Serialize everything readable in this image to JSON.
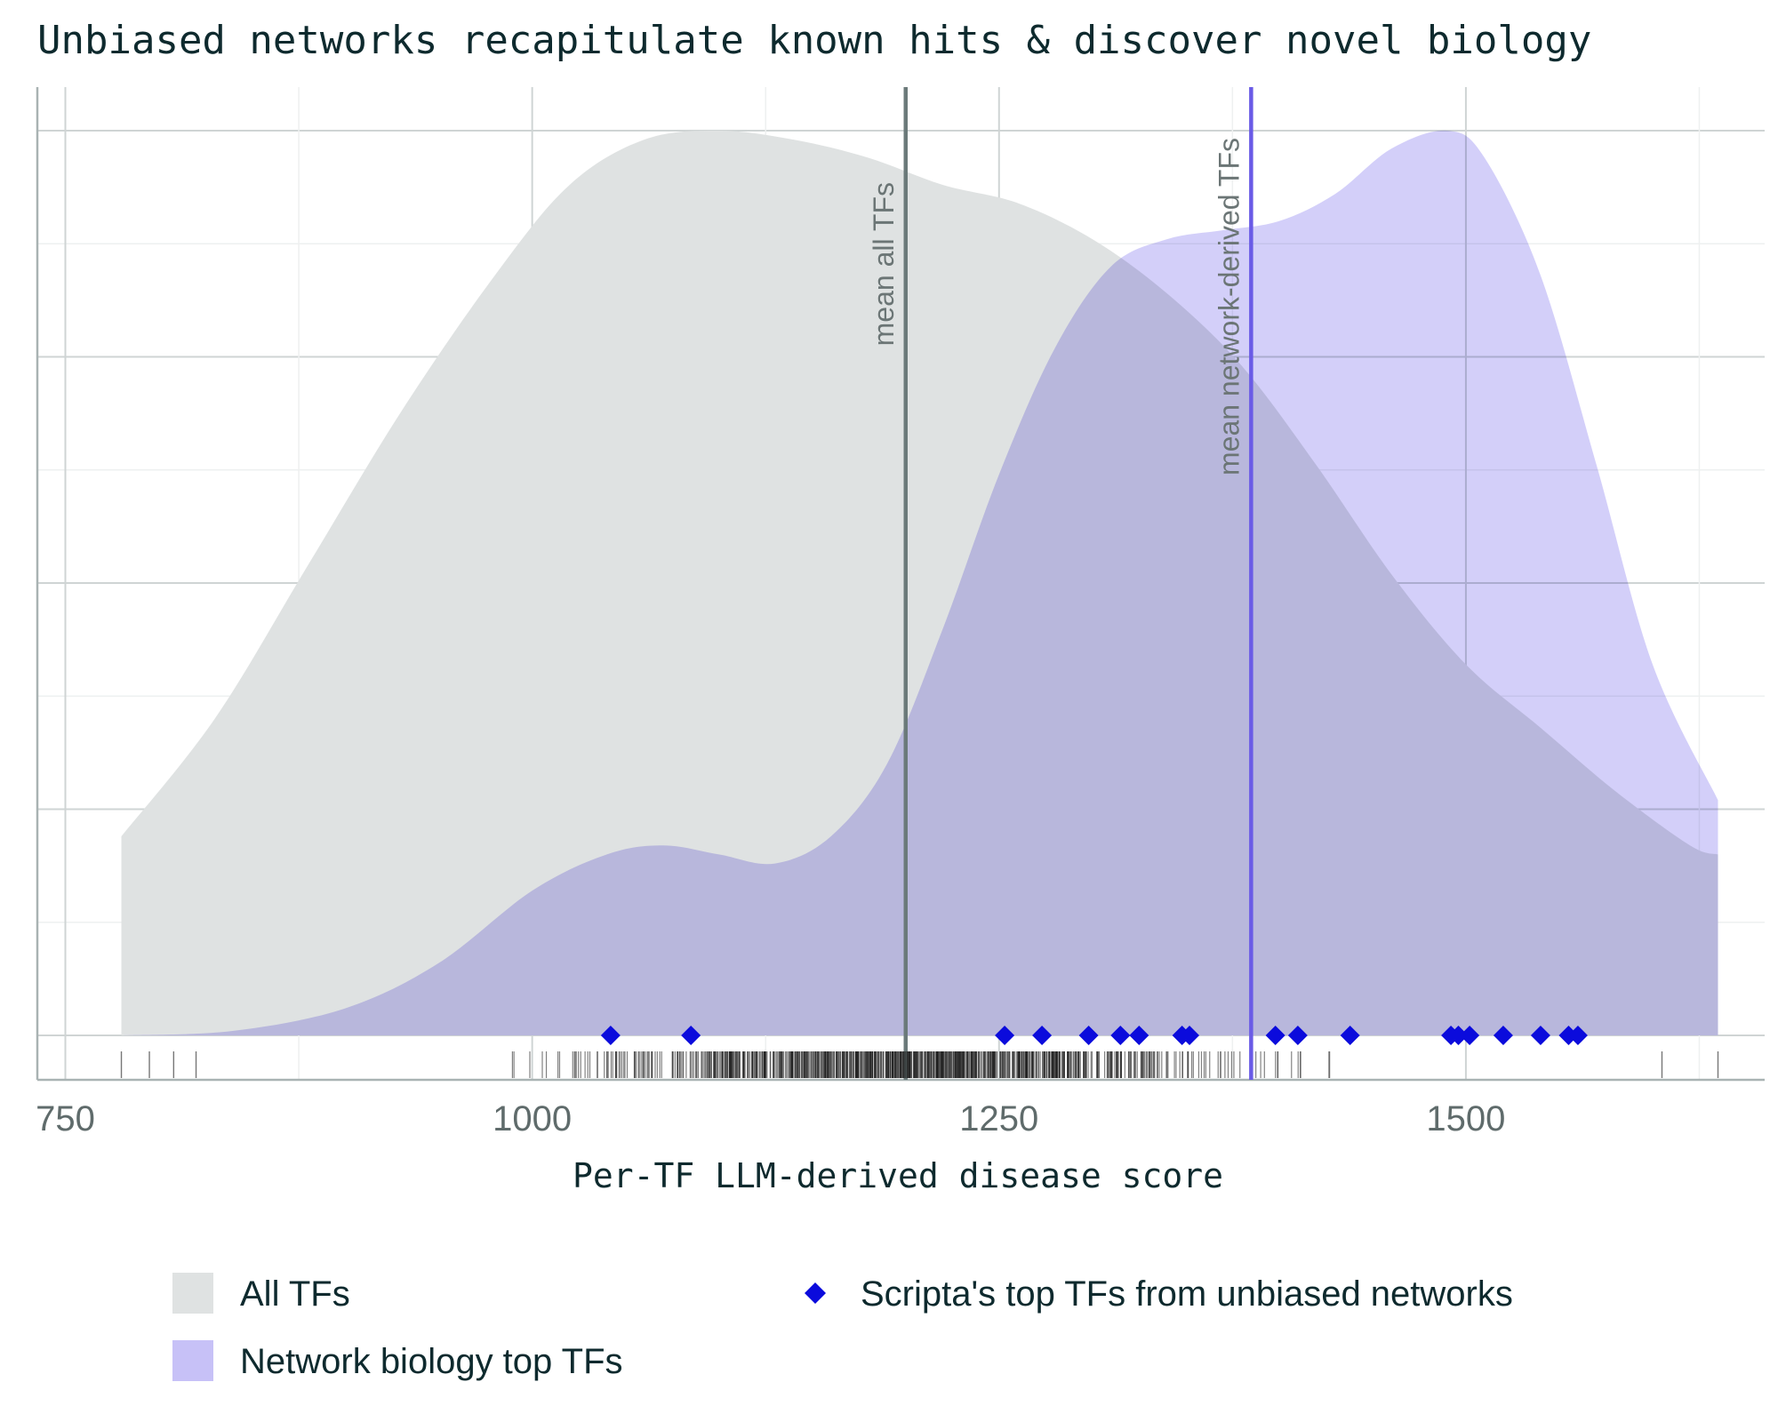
{
  "chart_data": {
    "type": "area",
    "title": "Unbiased networks recapitulate known hits & discover novel biology",
    "xlabel": "Per-TF LLM-derived disease score",
    "ylabel": "",
    "xlim": [
      735,
      1660
    ],
    "xticks": [
      750,
      1000,
      1250,
      1500
    ],
    "xtick_labels": [
      "750",
      "1000",
      "1250",
      "1500"
    ],
    "ylim": [
      0,
      1.05
    ],
    "grid": true,
    "legend_position": "bottom",
    "colors": {
      "all_tfs": "#dfe2e2",
      "network_tfs": "#c7c1f7",
      "scripta_marker": "#0b0bdc",
      "mean_all_line": "#6b7a7a",
      "mean_network_line": "#6a5be6",
      "rug": "#1c1c1c"
    },
    "series": [
      {
        "name": "All TFs",
        "style": "density",
        "x": [
          780,
          830,
          880,
          930,
          980,
          1020,
          1060,
          1100,
          1140,
          1180,
          1220,
          1260,
          1300,
          1340,
          1380,
          1420,
          1460,
          1500,
          1540,
          1580,
          1620,
          1635
        ],
        "y": [
          0.22,
          0.35,
          0.52,
          0.69,
          0.84,
          0.94,
          0.99,
          1.0,
          0.99,
          0.97,
          0.94,
          0.92,
          0.88,
          0.82,
          0.74,
          0.63,
          0.51,
          0.41,
          0.34,
          0.27,
          0.21,
          0.2
        ]
      },
      {
        "name": "Network biology top TFs",
        "style": "density",
        "x": [
          780,
          840,
          900,
          950,
          1000,
          1040,
          1070,
          1100,
          1130,
          1160,
          1190,
          1220,
          1250,
          1280,
          1310,
          1340,
          1370,
          1400,
          1430,
          1460,
          1490,
          1510,
          1540,
          1570,
          1600,
          1635
        ],
        "y": [
          0.0,
          0.005,
          0.03,
          0.08,
          0.16,
          0.2,
          0.21,
          0.2,
          0.19,
          0.22,
          0.3,
          0.45,
          0.62,
          0.76,
          0.85,
          0.88,
          0.89,
          0.9,
          0.93,
          0.98,
          1.0,
          0.97,
          0.84,
          0.63,
          0.41,
          0.26
        ]
      },
      {
        "name": "Scripta's top TFs from unbiased networks",
        "style": "markers",
        "x": [
          1042,
          1085,
          1253,
          1273,
          1298,
          1315,
          1325,
          1348,
          1352,
          1398,
          1410,
          1438,
          1492,
          1496,
          1502,
          1520,
          1540,
          1555,
          1560
        ]
      }
    ],
    "vertical_lines": [
      {
        "label": "mean all TFs",
        "x": 1200
      },
      {
        "label": "mean network-derived TFs",
        "x": 1385
      }
    ],
    "rug": {
      "x_min": 780,
      "x_max": 1635,
      "center": 1200,
      "spread": 155,
      "count": 900
    },
    "legend": [
      {
        "label": "All TFs",
        "kind": "patch",
        "color": "#dfe2e2"
      },
      {
        "label": "Network biology top TFs",
        "kind": "patch",
        "color": "#c7c1f7"
      },
      {
        "label": "Scripta's top TFs from unbiased networks",
        "kind": "diamond",
        "color": "#0b0bdc"
      }
    ]
  }
}
